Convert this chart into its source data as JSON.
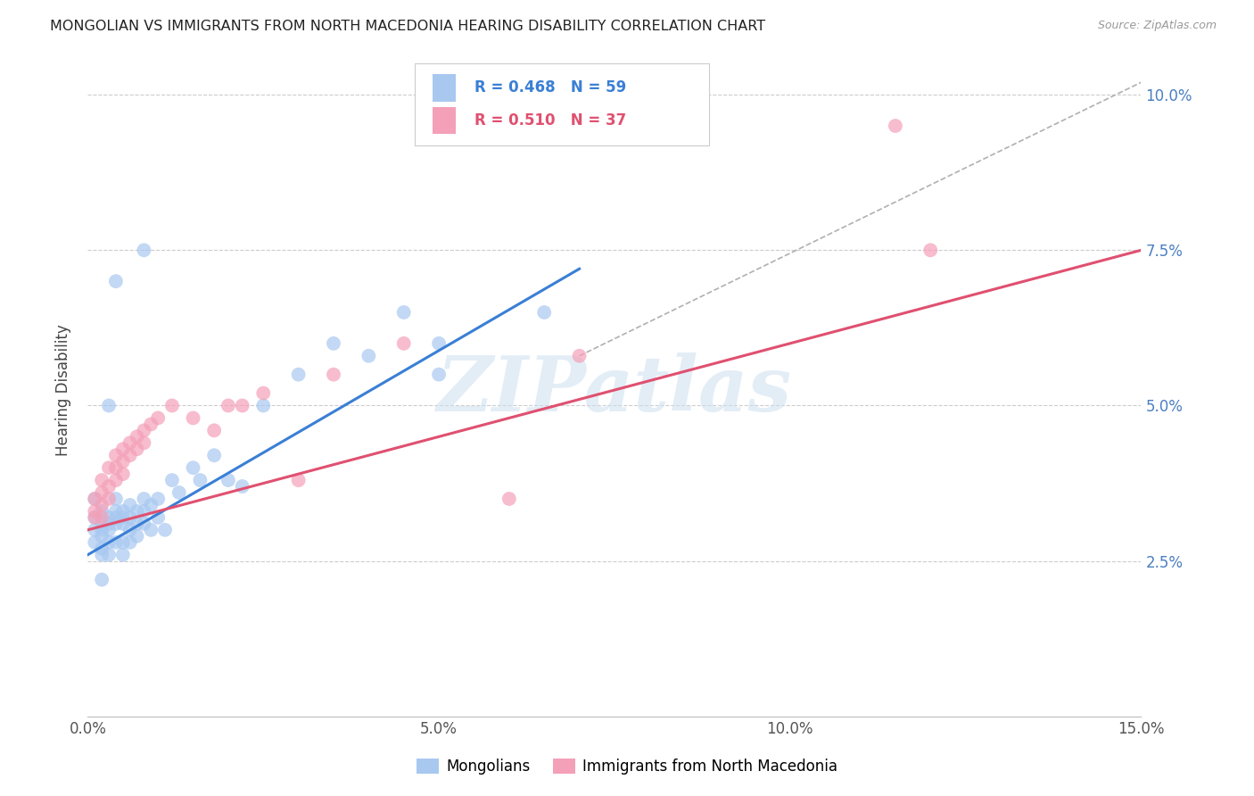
{
  "title": "MONGOLIAN VS IMMIGRANTS FROM NORTH MACEDONIA HEARING DISABILITY CORRELATION CHART",
  "source": "Source: ZipAtlas.com",
  "ylabel": "Hearing Disability",
  "xlim": [
    0.0,
    0.15
  ],
  "ylim": [
    0.0,
    0.105
  ],
  "background_color": "#ffffff",
  "grid_color": "#cccccc",
  "watermark_text": "ZIPatlas",
  "legend_R_blue": "0.468",
  "legend_N_blue": "59",
  "legend_R_pink": "0.510",
  "legend_N_pink": "37",
  "blue_scatter_color": "#a8c8f0",
  "pink_scatter_color": "#f4a0b8",
  "blue_line_color": "#3a7fd5",
  "pink_line_color": "#e05070",
  "dashed_line_color": "#b0b0b0",
  "blue_line_x": [
    0.0,
    0.07
  ],
  "blue_line_y": [
    0.026,
    0.072
  ],
  "pink_line_x": [
    0.0,
    0.15
  ],
  "pink_line_y": [
    0.03,
    0.075
  ],
  "dashed_line_x": [
    0.07,
    0.15
  ],
  "dashed_line_y": [
    0.058,
    0.102
  ],
  "mongo_x": [
    0.001,
    0.001,
    0.001,
    0.001,
    0.002,
    0.002,
    0.002,
    0.002,
    0.002,
    0.002,
    0.003,
    0.003,
    0.003,
    0.003,
    0.003,
    0.004,
    0.004,
    0.004,
    0.004,
    0.004,
    0.005,
    0.005,
    0.005,
    0.005,
    0.005,
    0.006,
    0.006,
    0.006,
    0.006,
    0.007,
    0.007,
    0.007,
    0.008,
    0.008,
    0.008,
    0.009,
    0.009,
    0.01,
    0.01,
    0.011,
    0.012,
    0.013,
    0.015,
    0.016,
    0.018,
    0.02,
    0.022,
    0.025,
    0.03,
    0.035,
    0.04,
    0.045,
    0.05,
    0.065,
    0.002,
    0.003,
    0.004,
    0.008,
    0.05
  ],
  "mongo_y": [
    0.03,
    0.035,
    0.032,
    0.028,
    0.033,
    0.031,
    0.03,
    0.029,
    0.027,
    0.026,
    0.032,
    0.031,
    0.03,
    0.028,
    0.026,
    0.035,
    0.033,
    0.032,
    0.031,
    0.028,
    0.033,
    0.032,
    0.031,
    0.028,
    0.026,
    0.034,
    0.032,
    0.03,
    0.028,
    0.033,
    0.031,
    0.029,
    0.035,
    0.033,
    0.031,
    0.034,
    0.03,
    0.035,
    0.032,
    0.03,
    0.038,
    0.036,
    0.04,
    0.038,
    0.042,
    0.038,
    0.037,
    0.05,
    0.055,
    0.06,
    0.058,
    0.065,
    0.055,
    0.065,
    0.022,
    0.05,
    0.07,
    0.075,
    0.06
  ],
  "mac_x": [
    0.001,
    0.001,
    0.001,
    0.002,
    0.002,
    0.002,
    0.002,
    0.003,
    0.003,
    0.003,
    0.004,
    0.004,
    0.004,
    0.005,
    0.005,
    0.005,
    0.006,
    0.006,
    0.007,
    0.007,
    0.008,
    0.008,
    0.009,
    0.01,
    0.012,
    0.015,
    0.018,
    0.02,
    0.022,
    0.025,
    0.03,
    0.035,
    0.045,
    0.06,
    0.07,
    0.115,
    0.12
  ],
  "mac_y": [
    0.035,
    0.033,
    0.032,
    0.038,
    0.036,
    0.034,
    0.032,
    0.04,
    0.037,
    0.035,
    0.042,
    0.04,
    0.038,
    0.043,
    0.041,
    0.039,
    0.044,
    0.042,
    0.045,
    0.043,
    0.046,
    0.044,
    0.047,
    0.048,
    0.05,
    0.048,
    0.046,
    0.05,
    0.05,
    0.052,
    0.038,
    0.055,
    0.06,
    0.035,
    0.058,
    0.095,
    0.075
  ]
}
